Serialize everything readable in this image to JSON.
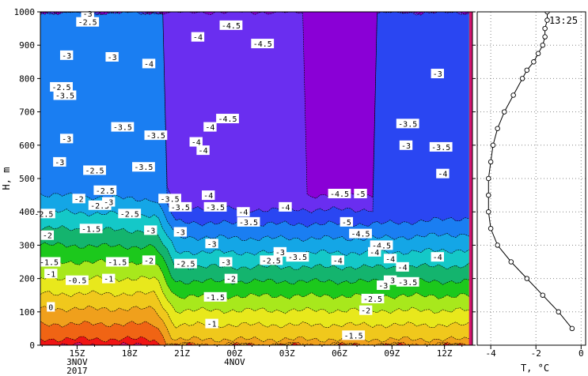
{
  "chart_data": [
    {
      "type": "heatmap",
      "ylabel": "H, m",
      "ylim": [
        0,
        1000
      ],
      "y_ticks": [
        "0",
        "100",
        "200",
        "300",
        "400",
        "500",
        "600",
        "700",
        "800",
        "900",
        "1000"
      ],
      "x_ticks": [
        {
          "label": "15Z",
          "sub": [
            "3NOV",
            "2017"
          ]
        },
        {
          "label": "18Z",
          "sub": []
        },
        {
          "label": "21Z",
          "sub": []
        },
        {
          "label": "00Z",
          "sub": [
            "4NOV"
          ]
        },
        {
          "label": "03Z",
          "sub": []
        },
        {
          "label": "06Z",
          "sub": []
        },
        {
          "label": "09Z",
          "sub": []
        },
        {
          "label": "12Z",
          "sub": []
        }
      ],
      "x_tick_hours": [
        15,
        18,
        21,
        24,
        27,
        30,
        33,
        36
      ],
      "x_range_hours": [
        12.9,
        37.6
      ],
      "contour_levels": [
        -5,
        -4.5,
        -4,
        -3.5,
        -3,
        -2.5,
        -2,
        -1.5,
        -1,
        -0.5,
        0,
        0.5,
        1,
        1.5
      ],
      "colors": [
        "#8a00d6",
        "#6a2ef0",
        "#2a46f2",
        "#1a7ef2",
        "#14a6e6",
        "#14c8c8",
        "#14b46e",
        "#1cc81c",
        "#a8e81c",
        "#e8e81c",
        "#f0c81c",
        "#f0a01c",
        "#f06414",
        "#f01414",
        "#d2146e"
      ],
      "contour_labels": [
        {
          "text": "-3",
          "hour": 15.6,
          "h": 995
        },
        {
          "text": "-2.5",
          "hour": 15.6,
          "h": 970
        },
        {
          "text": "-4.5",
          "hour": 23.8,
          "h": 960
        },
        {
          "text": "-4",
          "hour": 21.9,
          "h": 925
        },
        {
          "text": "-4.5",
          "hour": 25.6,
          "h": 905
        },
        {
          "text": "-3",
          "hour": 14.4,
          "h": 870
        },
        {
          "text": "-3",
          "hour": 17.0,
          "h": 865
        },
        {
          "text": "-4",
          "hour": 19.1,
          "h": 845
        },
        {
          "text": "-3",
          "hour": 35.6,
          "h": 815
        },
        {
          "text": "-2.5",
          "hour": 14.1,
          "h": 775
        },
        {
          "text": "-3.5",
          "hour": 14.3,
          "h": 750
        },
        {
          "text": "-4.5",
          "hour": 23.6,
          "h": 680
        },
        {
          "text": "-3.5",
          "hour": 17.6,
          "h": 655
        },
        {
          "text": "-4",
          "hour": 22.6,
          "h": 655
        },
        {
          "text": "-3.5",
          "hour": 33.9,
          "h": 665
        },
        {
          "text": "-3",
          "hour": 14.4,
          "h": 620
        },
        {
          "text": "-3.5",
          "hour": 19.5,
          "h": 630
        },
        {
          "text": "-4",
          "hour": 21.8,
          "h": 610
        },
        {
          "text": "-4",
          "hour": 22.2,
          "h": 585
        },
        {
          "text": "-3",
          "hour": 33.8,
          "h": 600
        },
        {
          "text": "-3.5",
          "hour": 35.8,
          "h": 595
        },
        {
          "text": "-3",
          "hour": 14.0,
          "h": 550
        },
        {
          "text": "-2.5",
          "hour": 16.0,
          "h": 525
        },
        {
          "text": "-3.5",
          "hour": 18.8,
          "h": 535
        },
        {
          "text": "-4",
          "hour": 35.9,
          "h": 515
        },
        {
          "text": "-2.5",
          "hour": 16.6,
          "h": 465
        },
        {
          "text": "-2",
          "hour": 15.1,
          "h": 440
        },
        {
          "text": "-2.5",
          "hour": 16.3,
          "h": 420
        },
        {
          "text": "-3",
          "hour": 16.8,
          "h": 430
        },
        {
          "text": "-3.5",
          "hour": 20.3,
          "h": 440
        },
        {
          "text": "-4",
          "hour": 22.5,
          "h": 450
        },
        {
          "text": "-3.5",
          "hour": 20.9,
          "h": 415
        },
        {
          "text": "-3.5",
          "hour": 22.9,
          "h": 415
        },
        {
          "text": "-4",
          "hour": 26.9,
          "h": 415
        },
        {
          "text": "-4.5",
          "hour": 30.0,
          "h": 455
        },
        {
          "text": "-5",
          "hour": 31.2,
          "h": 455
        },
        {
          "text": "-2.5",
          "hour": 13.1,
          "h": 395
        },
        {
          "text": "-2.5",
          "hour": 18.0,
          "h": 395
        },
        {
          "text": "-4",
          "hour": 24.5,
          "h": 400
        },
        {
          "text": "-3.5",
          "hour": 24.8,
          "h": 370
        },
        {
          "text": "-5",
          "hour": 30.4,
          "h": 370
        },
        {
          "text": "-1.5",
          "hour": 15.8,
          "h": 350
        },
        {
          "text": "-3",
          "hour": 19.2,
          "h": 345
        },
        {
          "text": "-3",
          "hour": 20.9,
          "h": 340
        },
        {
          "text": "-4.5",
          "hour": 31.2,
          "h": 335
        },
        {
          "text": "-2",
          "hour": 13.3,
          "h": 330
        },
        {
          "text": "-3",
          "hour": 22.7,
          "h": 305
        },
        {
          "text": "-4.5",
          "hour": 32.4,
          "h": 300
        },
        {
          "text": "-4",
          "hour": 32.0,
          "h": 280
        },
        {
          "text": "-3",
          "hour": 26.6,
          "h": 280
        },
        {
          "text": "-3.5",
          "hour": 27.6,
          "h": 265
        },
        {
          "text": "-4",
          "hour": 35.6,
          "h": 265
        },
        {
          "text": "-1.5",
          "hour": 13.4,
          "h": 250
        },
        {
          "text": "-1.5",
          "hour": 17.3,
          "h": 250
        },
        {
          "text": "-2",
          "hour": 19.1,
          "h": 255
        },
        {
          "text": "-2.5",
          "hour": 21.2,
          "h": 245
        },
        {
          "text": "-3",
          "hour": 23.5,
          "h": 250
        },
        {
          "text": "-2.5",
          "hour": 26.1,
          "h": 255
        },
        {
          "text": "-4",
          "hour": 29.9,
          "h": 255
        },
        {
          "text": "-4",
          "hour": 32.9,
          "h": 260
        },
        {
          "text": "-4",
          "hour": 33.6,
          "h": 235
        },
        {
          "text": "-1",
          "hour": 13.5,
          "h": 215
        },
        {
          "text": "-0.5",
          "hour": 15.0,
          "h": 195
        },
        {
          "text": "-1",
          "hour": 16.8,
          "h": 200
        },
        {
          "text": "-2",
          "hour": 23.8,
          "h": 200
        },
        {
          "text": "-3",
          "hour": 32.9,
          "h": 195
        },
        {
          "text": "-3.5",
          "hour": 33.9,
          "h": 190
        },
        {
          "text": "-3",
          "hour": 32.5,
          "h": 180
        },
        {
          "text": "-1.5",
          "hour": 22.9,
          "h": 145
        },
        {
          "text": "-2.5",
          "hour": 31.9,
          "h": 140
        },
        {
          "text": "0",
          "hour": 13.5,
          "h": 115
        },
        {
          "text": "-2",
          "hour": 31.5,
          "h": 105
        },
        {
          "text": "-1",
          "hour": 22.7,
          "h": 65
        },
        {
          "text": "-1.5",
          "hour": 30.8,
          "h": 30
        }
      ]
    },
    {
      "type": "line",
      "time_label": "13:25",
      "xlabel": "T, °C",
      "xlim": [
        -4.6,
        0.2
      ],
      "ylim": [
        0,
        1000
      ],
      "x_ticks": [
        "-4",
        "-2",
        "0"
      ],
      "x_tick_values": [
        -4,
        -2,
        0
      ],
      "series": [
        {
          "x": [
            -0.4,
            -1.0,
            -1.7,
            -2.4,
            -3.1,
            -3.7,
            -4.0,
            -4.1,
            -4.1,
            -4.1,
            -4.0,
            -3.9,
            -3.7,
            -3.4,
            -3.0,
            -2.6,
            -2.4,
            -2.1,
            -1.9,
            -1.7,
            -1.6,
            -1.6,
            -1.5,
            -1.5
          ],
          "y": [
            50,
            100,
            150,
            200,
            250,
            300,
            350,
            400,
            450,
            500,
            550,
            600,
            650,
            700,
            750,
            800,
            825,
            850,
            875,
            900,
            925,
            950,
            975,
            1000
          ]
        }
      ]
    }
  ]
}
